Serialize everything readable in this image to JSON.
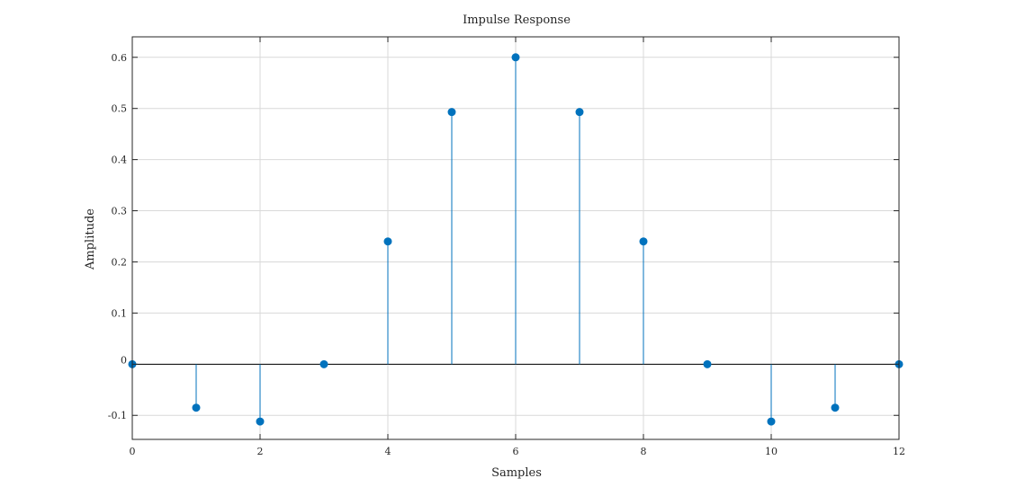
{
  "chart_data": {
    "type": "stem",
    "title": "Impulse Response",
    "xlabel": "Samples",
    "ylabel": "Amplitude",
    "xlim": [
      0,
      12
    ],
    "ylim": [
      -0.147,
      0.64
    ],
    "xticks": [
      0,
      2,
      4,
      6,
      8,
      10,
      12
    ],
    "xtick_labels": [
      "0",
      "2",
      "4",
      "6",
      "8",
      "10",
      "12"
    ],
    "yticks": [
      -0.1,
      0,
      0.1,
      0.2,
      0.3,
      0.4,
      0.5,
      0.6
    ],
    "ytick_labels": [
      "-0.1",
      "0",
      "0.1",
      "0.2",
      "0.3",
      "0.4",
      "0.5",
      "0.6"
    ],
    "grid": true,
    "series": [
      {
        "x": [
          0,
          1,
          2,
          3,
          4,
          5,
          6,
          7,
          8,
          9,
          10,
          11,
          12
        ],
        "values": [
          0,
          -0.085,
          -0.112,
          0,
          0.24,
          0.493,
          0.6,
          0.493,
          0.24,
          0,
          -0.112,
          -0.085,
          0
        ],
        "color": "#0072BD"
      }
    ]
  }
}
